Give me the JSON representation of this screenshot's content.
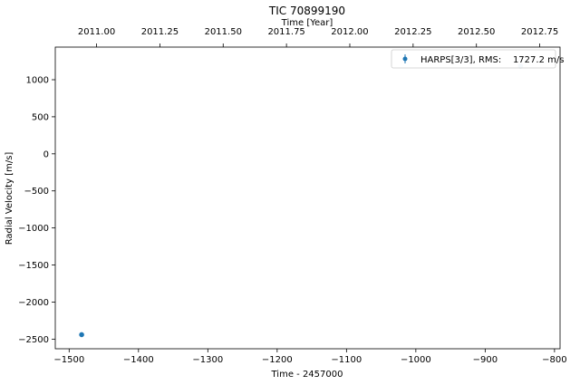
{
  "chart_data": {
    "type": "scatter",
    "title": "TIC 70899190",
    "xlabel": "Time - 2457000",
    "ylabel": "Radial Velocity [m/s]",
    "top_xlabel": "Time [Year]",
    "xlim": [
      -1520,
      -792
    ],
    "ylim": [
      -2630,
      1440
    ],
    "x_ticks": [
      -1500,
      -1400,
      -1300,
      -1200,
      -1100,
      -1000,
      -900,
      -800
    ],
    "x_tick_labels": [
      "−1500",
      "−1400",
      "−1300",
      "−1200",
      "−1100",
      "−1000",
      "−900",
      "−800"
    ],
    "y_ticks": [
      1000,
      500,
      0,
      -500,
      -1000,
      -1500,
      -2000,
      -2500
    ],
    "y_tick_labels": [
      "1000",
      "500",
      "0",
      "−500",
      "−1000",
      "−1500",
      "−2000",
      "−2500"
    ],
    "top_ticks": [
      2011.0,
      2011.25,
      2011.5,
      2011.75,
      2012.0,
      2012.25,
      2012.5,
      2012.75
    ],
    "top_tick_labels": [
      "2011.00",
      "2011.25",
      "2011.50",
      "2011.75",
      "2012.00",
      "2012.25",
      "2012.50",
      "2012.75"
    ],
    "year_ref": {
      "time": -1544.5,
      "year": 2010.77,
      "days_per_year": 365.25
    },
    "series": [
      {
        "name": "HARPS[3/3], RMS:    1727.2 m/s",
        "color": "#1f77b4",
        "points": [
          {
            "x": -1482,
            "y": -2440,
            "alpha": 1.0
          },
          {
            "x": -849,
            "y": 1185,
            "alpha": 0.25
          }
        ]
      }
    ],
    "legend": {
      "position": "top-right",
      "label": "HARPS[3/3], RMS:    1727.2 m/s"
    }
  }
}
